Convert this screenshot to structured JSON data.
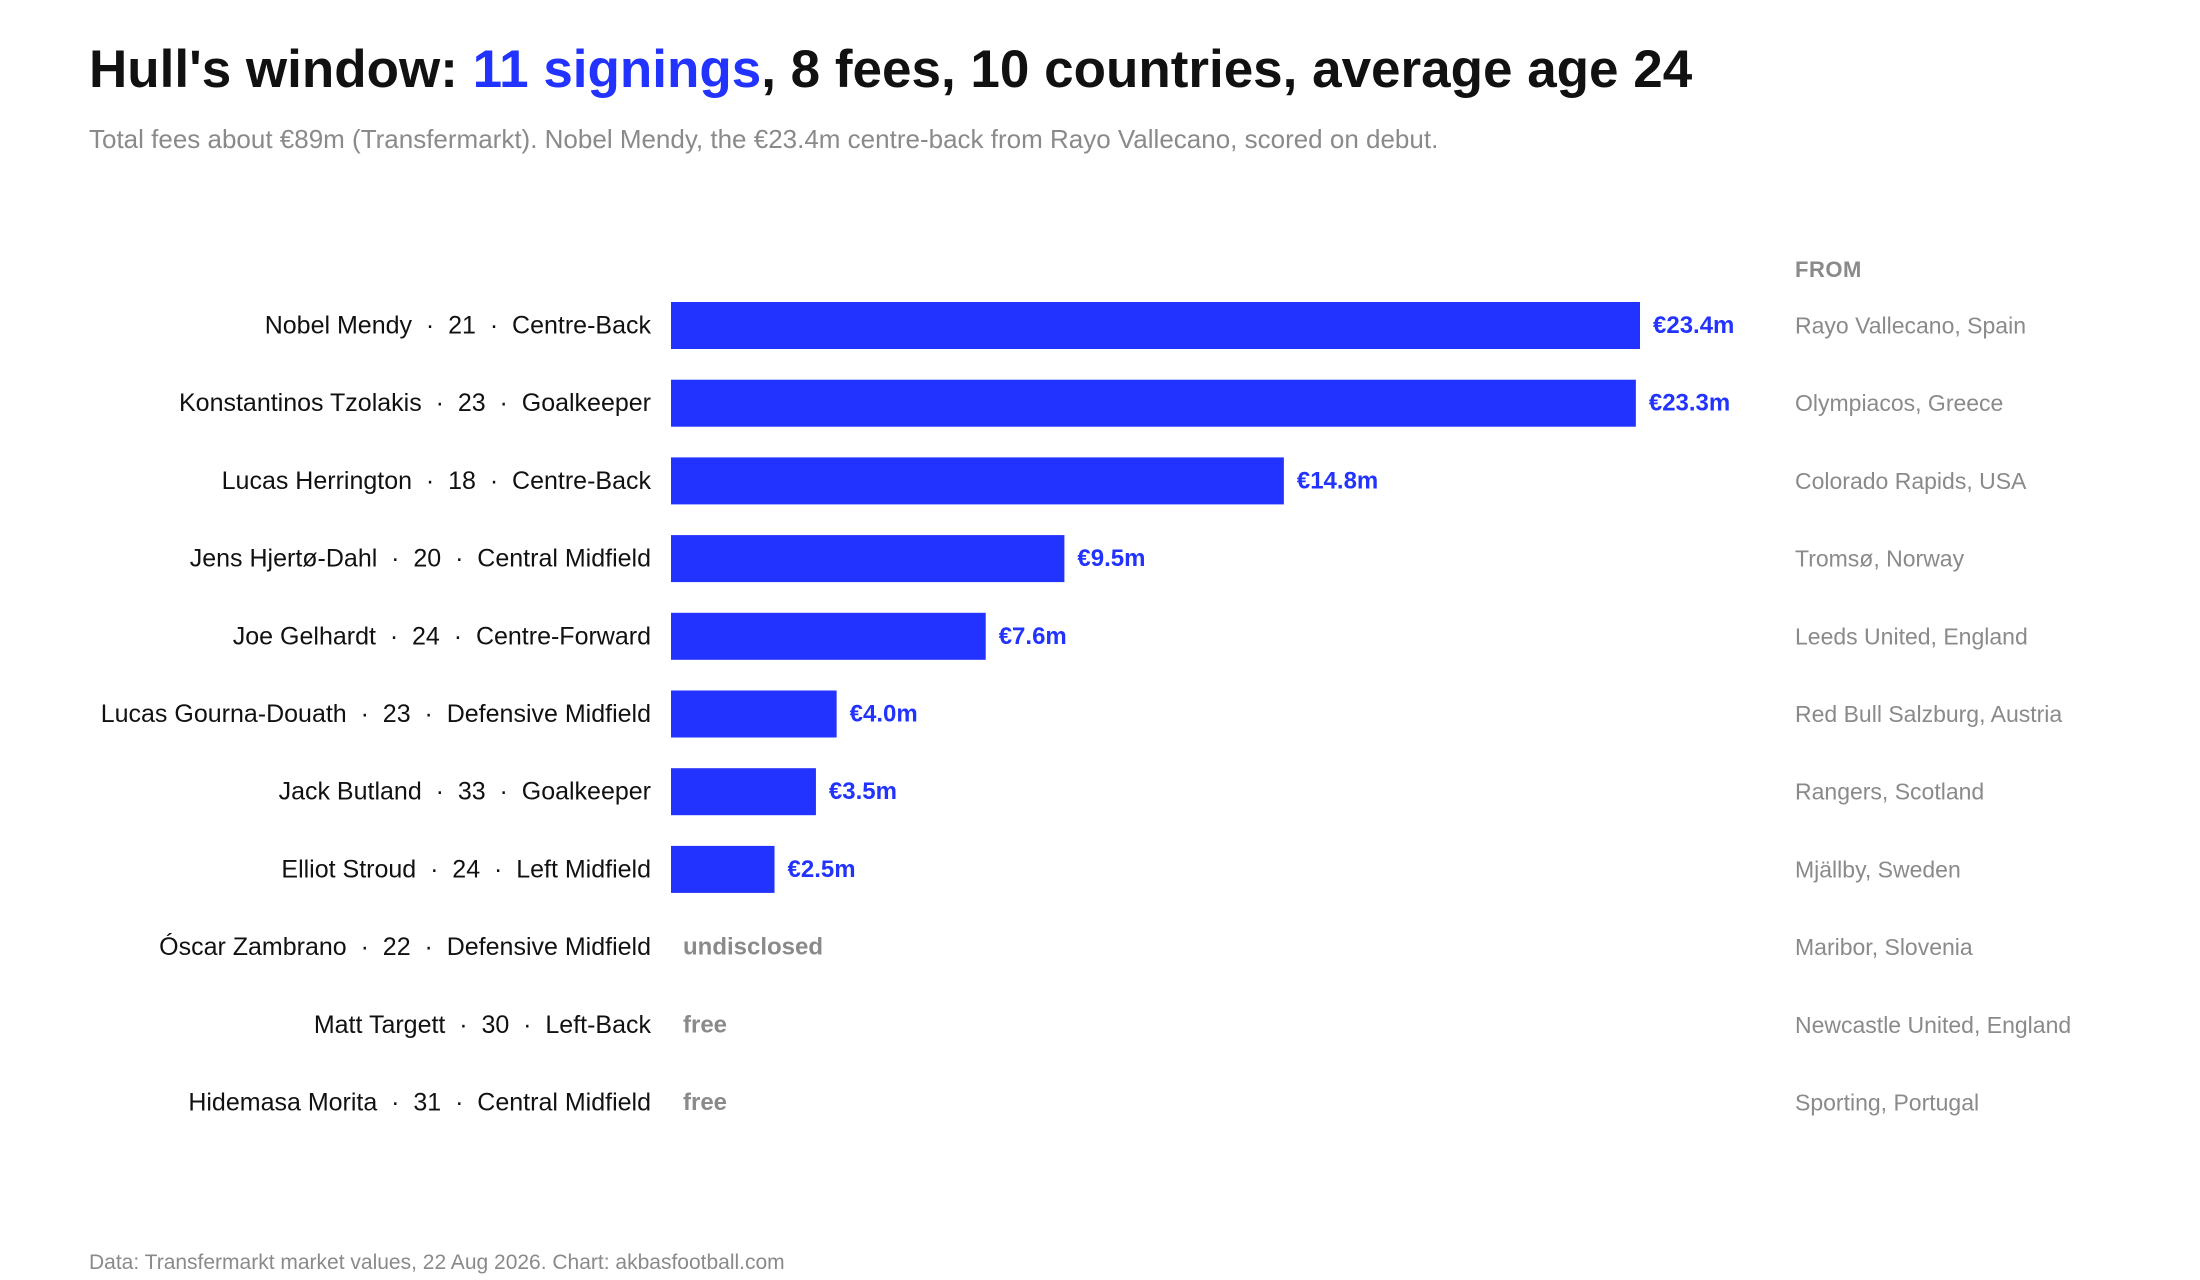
{
  "header": {
    "title_highlight": "11 signings",
    "title_rest": ", 8 fees, 10 countries, average age 24",
    "title_prefix": "Hull's window: ",
    "subtitle": "Total fees about €89m (Transfermarkt). Nobel Mendy, the €23.4m centre-back from Rayo Vallecano, scored on debut."
  },
  "columns": {
    "from_header": "FROM"
  },
  "footer": {
    "source": "Data: Transfermarkt market values, 22 Aug 2026. Chart: akbasfootball.com"
  },
  "colors": {
    "bar": "#2233ff",
    "value_label": "#2233ff",
    "muted": "#8a8a8a",
    "text": "#111111"
  },
  "chart_data": {
    "type": "bar",
    "orientation": "horizontal",
    "unit": "€m",
    "xlim": [
      0,
      23.4
    ],
    "grid": false,
    "categories": [
      "Nobel Mendy  ·  21  ·  Centre-Back",
      "Konstantinos Tzolakis  ·  23  ·  Goalkeeper",
      "Lucas Herrington  ·  18  ·  Centre-Back",
      "Jens Hjertø-Dahl  ·  20  ·  Central Midfield",
      "Joe Gelhardt  ·  24  ·  Centre-Forward",
      "Lucas Gourna-Douath  ·  23  ·  Defensive Midfield",
      "Jack Butland  ·  33  ·  Goalkeeper",
      "Elliot Stroud  ·  24  ·  Left Midfield",
      "Óscar Zambrano  ·  22  ·  Defensive Midfield",
      "Matt Targett  ·  30  ·  Left-Back",
      "Hidemasa Morita  ·  31  ·  Central Midfield"
    ],
    "values": [
      23.4,
      23.3,
      14.8,
      9.5,
      7.6,
      4.0,
      3.5,
      2.5,
      null,
      null,
      null
    ],
    "value_labels": [
      "€23.4m",
      "€23.3m",
      "€14.8m",
      "€9.5m",
      "€7.6m",
      "€4.0m",
      "€3.5m",
      "€2.5m",
      "undisclosed",
      "free",
      "free"
    ],
    "from": [
      "Rayo Vallecano, Spain",
      "Olympiacos, Greece",
      "Colorado Rapids, USA",
      "Tromsø, Norway",
      "Leeds United, England",
      "Red Bull Salzburg, Austria",
      "Rangers, Scotland",
      "Mjällby, Sweden",
      "Maribor, Slovenia",
      "Newcastle United, England",
      "Sporting, Portugal"
    ]
  }
}
